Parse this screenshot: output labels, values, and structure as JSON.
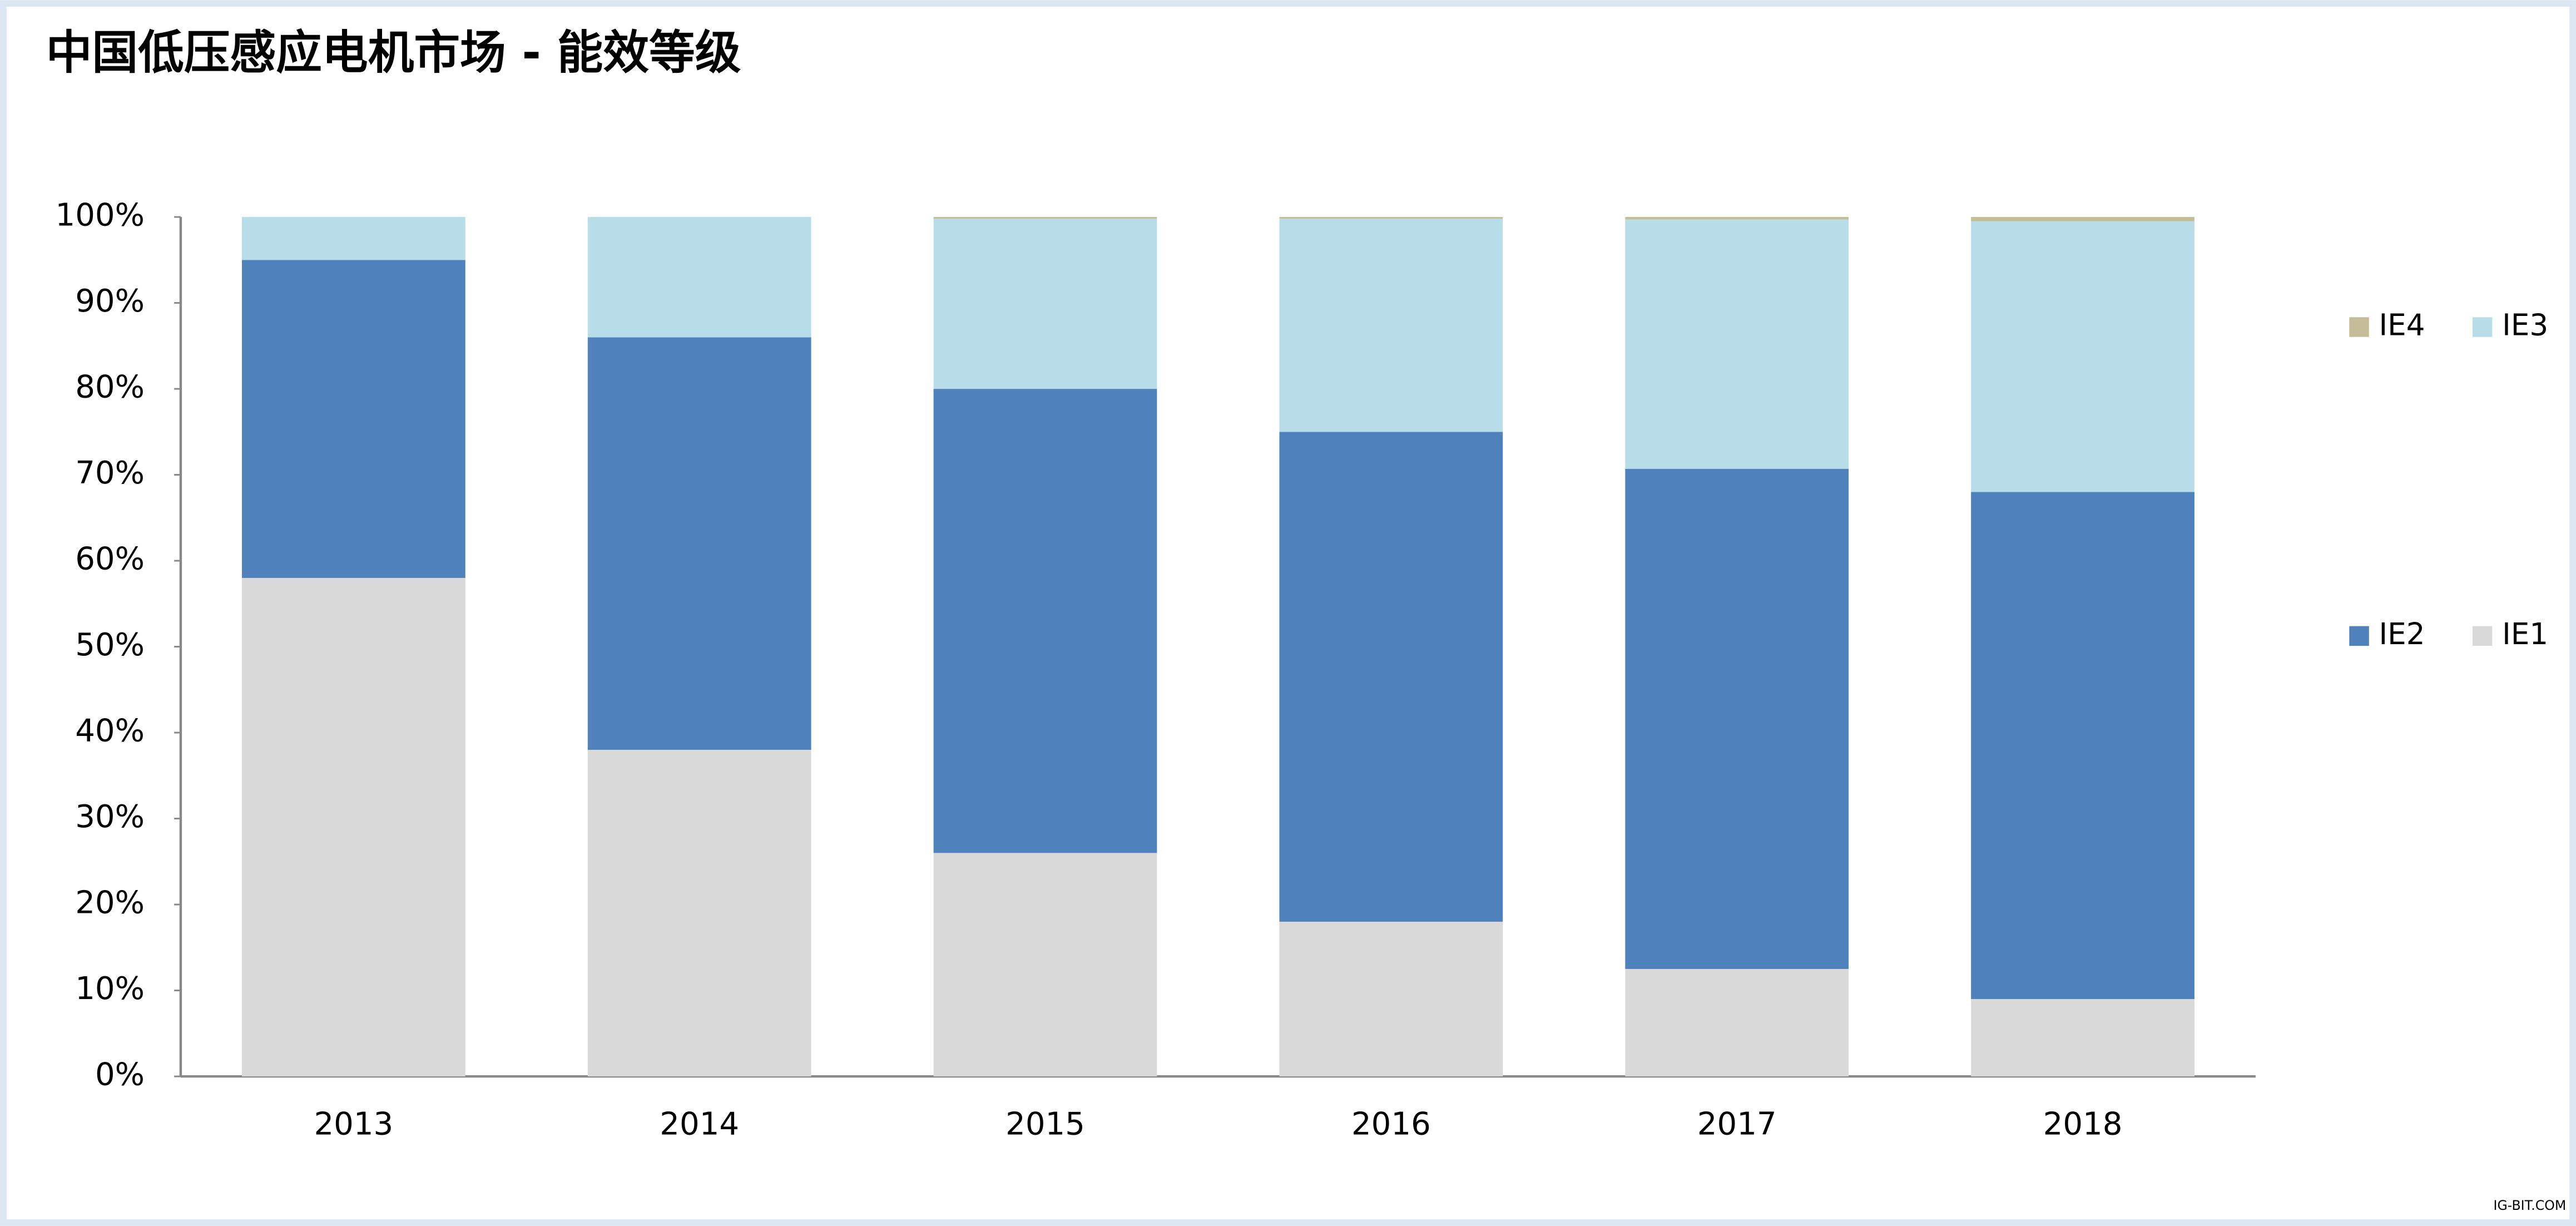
{
  "chart_data": {
    "type": "stacked_bar",
    "title": "中国低压感应电机市场 - 能效等级",
    "categories": [
      "2013",
      "2014",
      "2015",
      "2016",
      "2017",
      "2018"
    ],
    "series": [
      {
        "name": "IE1",
        "color": "#d9d9d9",
        "values": [
          58,
          38,
          26,
          18,
          12.5,
          9
        ]
      },
      {
        "name": "IE2",
        "color": "#4f81bd",
        "values": [
          37,
          48,
          54,
          57,
          58.2,
          59
        ]
      },
      {
        "name": "IE3",
        "color": "#b7dee8",
        "values": [
          5,
          14,
          19.8,
          24.8,
          29,
          31.5
        ]
      },
      {
        "name": "IE4",
        "color": "#c4bd97",
        "values": [
          0,
          0,
          0.2,
          0.2,
          0.3,
          0.5
        ]
      }
    ],
    "ylim": [
      0,
      100
    ],
    "yticks": [
      {
        "value": 0,
        "label": "0%"
      },
      {
        "value": 10,
        "label": "10%"
      },
      {
        "value": 20,
        "label": "20%"
      },
      {
        "value": 30,
        "label": "30%"
      },
      {
        "value": 40,
        "label": "40%"
      },
      {
        "value": 50,
        "label": "50%"
      },
      {
        "value": 60,
        "label": "60%"
      },
      {
        "value": 70,
        "label": "70%"
      },
      {
        "value": 80,
        "label": "80%"
      },
      {
        "value": 90,
        "label": "90%"
      },
      {
        "value": 100,
        "label": "100%"
      }
    ],
    "grid": false,
    "watermark": "IG-BIT.COM"
  }
}
